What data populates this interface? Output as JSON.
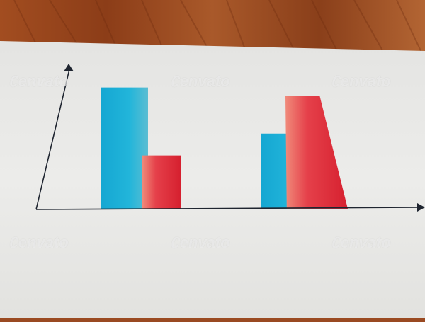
{
  "scene": {
    "table_color": "#9a4a22",
    "paper_color": "#e9e9e7",
    "axis_color": "#1f2530"
  },
  "watermark": {
    "text": "envato",
    "mark_glyph": "∁",
    "mark_name": "envato-leaf-logo"
  },
  "chart_data": {
    "type": "bar",
    "categories": [
      "",
      ""
    ],
    "series": [
      {
        "values": [
          10,
          6.2
        ],
        "color": "#1fb0d6"
      },
      {
        "values": [
          4.4,
          9.3
        ],
        "color": "#e0283a"
      }
    ],
    "ylim": [
      0,
      10.5
    ],
    "axis_labels": "none",
    "tick_labels": "none",
    "legend": "none",
    "grid": false
  }
}
